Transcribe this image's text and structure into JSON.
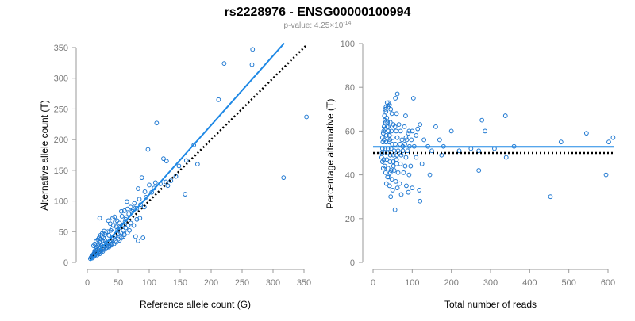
{
  "header": {
    "title": "rs2228976 - ENSG00000100994",
    "pvalue_prefix": "p-value: 4.25×10",
    "pvalue_exponent": "-14"
  },
  "colors": {
    "points": "#1f78d1",
    "fit_line": "#1e88e5",
    "reference_line": "#000000",
    "axis": "#9a9a9a"
  },
  "chart_data": [
    {
      "type": "scatter",
      "title": "",
      "xlabel": "Reference allele count (G)",
      "ylabel": "Alternative allele count (T)",
      "xlim": [
        0,
        350
      ],
      "ylim": [
        0,
        350
      ],
      "xticks": [
        "0",
        "50",
        "100",
        "150",
        "200",
        "250",
        "300",
        "350"
      ],
      "yticks": [
        "0",
        "50",
        "100",
        "150",
        "200",
        "250",
        "300",
        "350"
      ],
      "fit_line": {
        "x": [
          5,
          318
        ],
        "y": [
          3,
          357
        ]
      },
      "reference_line": {
        "x": [
          5,
          355
        ],
        "y": [
          5,
          355
        ]
      },
      "points": [
        [
          267,
          347
        ],
        [
          221,
          324
        ],
        [
          266,
          322
        ],
        [
          212,
          265
        ],
        [
          112,
          227
        ],
        [
          354,
          237
        ],
        [
          98,
          184
        ],
        [
          172,
          191
        ],
        [
          123,
          169
        ],
        [
          128,
          165
        ],
        [
          178,
          160
        ],
        [
          317,
          138
        ],
        [
          158,
          111
        ],
        [
          148,
          157
        ],
        [
          160,
          166
        ],
        [
          143,
          140
        ],
        [
          88,
          138
        ],
        [
          135,
          133
        ],
        [
          127,
          131
        ],
        [
          110,
          130
        ],
        [
          100,
          126
        ],
        [
          108,
          121
        ],
        [
          130,
          125
        ],
        [
          82,
          120
        ],
        [
          93,
          115
        ],
        [
          84,
          103
        ],
        [
          76,
          96
        ],
        [
          64,
          99
        ],
        [
          92,
          90
        ],
        [
          80,
          88
        ],
        [
          74,
          86
        ],
        [
          70,
          90
        ],
        [
          65,
          87
        ],
        [
          60,
          84
        ],
        [
          55,
          83
        ],
        [
          56,
          75
        ],
        [
          62,
          70
        ],
        [
          48,
          68
        ],
        [
          52,
          64
        ],
        [
          45,
          66
        ],
        [
          42,
          60
        ],
        [
          40,
          55
        ],
        [
          47,
          58
        ],
        [
          38,
          52
        ],
        [
          33,
          50
        ],
        [
          30,
          48
        ],
        [
          35,
          44
        ],
        [
          28,
          45
        ],
        [
          26,
          40
        ],
        [
          24,
          42
        ],
        [
          22,
          38
        ],
        [
          25,
          35
        ],
        [
          20,
          33
        ],
        [
          18,
          30
        ],
        [
          17,
          27
        ],
        [
          15,
          25
        ],
        [
          14,
          22
        ],
        [
          13,
          20
        ],
        [
          12,
          18
        ],
        [
          11,
          15
        ],
        [
          10,
          13
        ],
        [
          9,
          12
        ],
        [
          8,
          10
        ],
        [
          7,
          9
        ],
        [
          6,
          8
        ],
        [
          5,
          6
        ],
        [
          16,
          12
        ],
        [
          18,
          15
        ],
        [
          20,
          18
        ],
        [
          22,
          20
        ],
        [
          24,
          22
        ],
        [
          26,
          24
        ],
        [
          28,
          26
        ],
        [
          30,
          28
        ],
        [
          32,
          30
        ],
        [
          34,
          32
        ],
        [
          36,
          34
        ],
        [
          38,
          36
        ],
        [
          40,
          38
        ],
        [
          42,
          40
        ],
        [
          44,
          42
        ],
        [
          46,
          44
        ],
        [
          50,
          46
        ],
        [
          54,
          48
        ],
        [
          58,
          52
        ],
        [
          62,
          56
        ],
        [
          66,
          60
        ],
        [
          70,
          64
        ],
        [
          31,
          32
        ],
        [
          29,
          35
        ],
        [
          27,
          30
        ],
        [
          23,
          27
        ],
        [
          21,
          25
        ],
        [
          19,
          23
        ],
        [
          17,
          21
        ],
        [
          15,
          19
        ],
        [
          13,
          17
        ],
        [
          11,
          14
        ],
        [
          9,
          11
        ],
        [
          40,
          30
        ],
        [
          45,
          35
        ],
        [
          50,
          38
        ],
        [
          55,
          40
        ],
        [
          60,
          45
        ],
        [
          35,
          25
        ],
        [
          30,
          22
        ],
        [
          25,
          18
        ],
        [
          20,
          14
        ],
        [
          68,
          52
        ],
        [
          75,
          60
        ],
        [
          80,
          70
        ],
        [
          85,
          72
        ],
        [
          90,
          40
        ],
        [
          82,
          35
        ],
        [
          78,
          42
        ],
        [
          65,
          48
        ],
        [
          58,
          42
        ],
        [
          52,
          36
        ],
        [
          47,
          33
        ],
        [
          43,
          30
        ],
        [
          39,
          28
        ],
        [
          36,
          27
        ],
        [
          33,
          26
        ],
        [
          31,
          24
        ],
        [
          26,
          21
        ],
        [
          23,
          19
        ],
        [
          19,
          17
        ],
        [
          16,
          16
        ],
        [
          14,
          14
        ],
        [
          12,
          11
        ],
        [
          10,
          9
        ],
        [
          8,
          7
        ],
        [
          27,
          51
        ],
        [
          24,
          47
        ],
        [
          21,
          44
        ],
        [
          19,
          40
        ],
        [
          17,
          37
        ],
        [
          14,
          34
        ],
        [
          12,
          30
        ],
        [
          10,
          27
        ],
        [
          20,
          72
        ],
        [
          34,
          68
        ],
        [
          37,
          63
        ],
        [
          41,
          72
        ],
        [
          44,
          74
        ],
        [
          49,
          53
        ],
        [
          53,
          57
        ],
        [
          57,
          61
        ],
        [
          61,
          66
        ],
        [
          63,
          73
        ],
        [
          67,
          79
        ],
        [
          72,
          83
        ],
        [
          77,
          88
        ],
        [
          86,
          94
        ],
        [
          95,
          106
        ],
        [
          104,
          114
        ],
        [
          118,
          128
        ]
      ]
    },
    {
      "type": "scatter",
      "title": "",
      "xlabel": "Total number of reads",
      "ylabel": "Percentage alternative (T)",
      "xlim": [
        0,
        600
      ],
      "ylim": [
        0,
        100
      ],
      "xticks": [
        "0",
        "100",
        "200",
        "300",
        "400",
        "500",
        "600"
      ],
      "yticks": [
        "0",
        "20",
        "40",
        "60",
        "80",
        "100"
      ],
      "fit_line": {
        "x": [
          0,
          615
        ],
        "y": [
          52.8,
          52.8
        ]
      },
      "reference_line": {
        "x": [
          0,
          615
        ],
        "y": [
          50,
          50
        ]
      },
      "points": [
        [
          62,
          77
        ],
        [
          57,
          75
        ],
        [
          103,
          75
        ],
        [
          36,
          73
        ],
        [
          40,
          73
        ],
        [
          42,
          72
        ],
        [
          38,
          71
        ],
        [
          45,
          70
        ],
        [
          33,
          69
        ],
        [
          48,
          68
        ],
        [
          60,
          68
        ],
        [
          83,
          67
        ],
        [
          338,
          67
        ],
        [
          278,
          65
        ],
        [
          30,
          65
        ],
        [
          32,
          64
        ],
        [
          44,
          64
        ],
        [
          52,
          63
        ],
        [
          66,
          63
        ],
        [
          120,
          63
        ],
        [
          28,
          62
        ],
        [
          36,
          62
        ],
        [
          56,
          62
        ],
        [
          80,
          62
        ],
        [
          114,
          61
        ],
        [
          160,
          62
        ],
        [
          30,
          61
        ],
        [
          39,
          60
        ],
        [
          47,
          60
        ],
        [
          59,
          60
        ],
        [
          70,
          60
        ],
        [
          90,
          59
        ],
        [
          100,
          60
        ],
        [
          110,
          58
        ],
        [
          200,
          60
        ],
        [
          286,
          60
        ],
        [
          545,
          59
        ],
        [
          26,
          59
        ],
        [
          34,
          58
        ],
        [
          42,
          58
        ],
        [
          50,
          57
        ],
        [
          62,
          57
        ],
        [
          74,
          56
        ],
        [
          86,
          56
        ],
        [
          98,
          56
        ],
        [
          130,
          56
        ],
        [
          170,
          56
        ],
        [
          28,
          56
        ],
        [
          25,
          55
        ],
        [
          33,
          55
        ],
        [
          41,
          55
        ],
        [
          49,
          54
        ],
        [
          57,
          54
        ],
        [
          69,
          54
        ],
        [
          81,
          54
        ],
        [
          93,
          53
        ],
        [
          105,
          53
        ],
        [
          140,
          53
        ],
        [
          180,
          53
        ],
        [
          250,
          52
        ],
        [
          480,
          55
        ],
        [
          602,
          55
        ],
        [
          613,
          57
        ],
        [
          24,
          52
        ],
        [
          31,
          52
        ],
        [
          38,
          52
        ],
        [
          46,
          52
        ],
        [
          54,
          51
        ],
        [
          64,
          51
        ],
        [
          76,
          51
        ],
        [
          88,
          51
        ],
        [
          150,
          51
        ],
        [
          220,
          51
        ],
        [
          270,
          51
        ],
        [
          310,
          52
        ],
        [
          360,
          53
        ],
        [
          23,
          50
        ],
        [
          29,
          50
        ],
        [
          36,
          50
        ],
        [
          44,
          49
        ],
        [
          52,
          49
        ],
        [
          61,
          49
        ],
        [
          72,
          49
        ],
        [
          84,
          48
        ],
        [
          110,
          48
        ],
        [
          175,
          49
        ],
        [
          340,
          48
        ],
        [
          22,
          48
        ],
        [
          27,
          47
        ],
        [
          35,
          47
        ],
        [
          43,
          46
        ],
        [
          51,
          46
        ],
        [
          60,
          45
        ],
        [
          70,
          45
        ],
        [
          82,
          44
        ],
        [
          96,
          44
        ],
        [
          125,
          45
        ],
        [
          24,
          46
        ],
        [
          30,
          44
        ],
        [
          38,
          43
        ],
        [
          46,
          42
        ],
        [
          54,
          42
        ],
        [
          64,
          41
        ],
        [
          78,
          41
        ],
        [
          92,
          40
        ],
        [
          145,
          40
        ],
        [
          270,
          42
        ],
        [
          595,
          40
        ],
        [
          26,
          43
        ],
        [
          32,
          41
        ],
        [
          40,
          39
        ],
        [
          48,
          38
        ],
        [
          58,
          37
        ],
        [
          68,
          36
        ],
        [
          85,
          35
        ],
        [
          100,
          34
        ],
        [
          118,
          33
        ],
        [
          34,
          36
        ],
        [
          42,
          35
        ],
        [
          50,
          33
        ],
        [
          62,
          34
        ],
        [
          72,
          31
        ],
        [
          90,
          32
        ],
        [
          120,
          28
        ],
        [
          45,
          30
        ],
        [
          56,
          24
        ],
        [
          453,
          30
        ],
        [
          37,
          39
        ],
        [
          44,
          41
        ],
        [
          52,
          44
        ],
        [
          60,
          47
        ],
        [
          68,
          50
        ],
        [
          76,
          53
        ],
        [
          84,
          57
        ],
        [
          92,
          60
        ],
        [
          24,
          57
        ],
        [
          27,
          60
        ],
        [
          29,
          67
        ],
        [
          31,
          70
        ],
        [
          33,
          71
        ],
        [
          35,
          66
        ],
        [
          37,
          64
        ],
        [
          39,
          62
        ],
        [
          41,
          58
        ],
        [
          43,
          56
        ]
      ]
    }
  ]
}
